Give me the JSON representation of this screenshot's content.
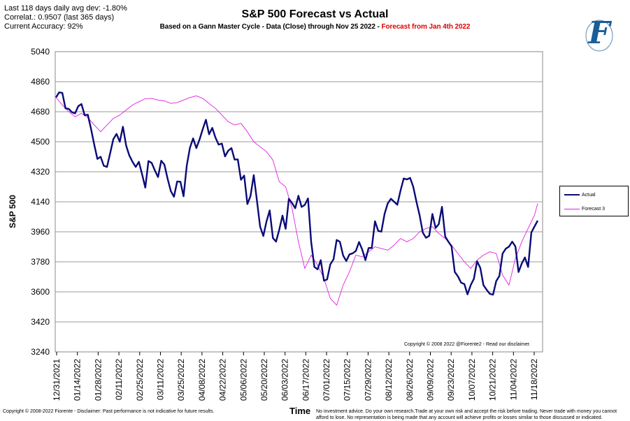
{
  "stats": {
    "line1": "Last 118 days daily avg dev: -1.80%",
    "line2": "Correlat.: 0.9507 (last 365 days)",
    "line3": "Current Accuracy: 92%"
  },
  "header": {
    "title": "S&P 500 Forecast vs Actual",
    "subtitle_main": "Based on a Gann Master Cycle - Data (Close) through Nov 25 2022 - ",
    "subtitle_forecast": "Forecast from Jan 4th 2022"
  },
  "logo": {
    "letter": "F"
  },
  "footer": {
    "left": "Copyright © 2008-2022 Fiorente - Disclaimer: Past performance is not indicative for future results.",
    "time_label": "Time",
    "right": "No investment advice. Do your own research.Trade at your own risk and accept the risk before trading. Never trade with money you cannot afford to lose. No representation is being made that any account will achieve profits or losses similar to those discussed or indicated."
  },
  "chart_copyright": "Copyright © 2008 2022 @Fiorente2 - Read our disclaimer.",
  "colors": {
    "actual": "#0a0a78",
    "forecast": "#e020e0",
    "grid": "#9a9a9a"
  },
  "chart_data": {
    "type": "line",
    "title": "S&P 500 Forecast vs Actual",
    "xlabel": "Time",
    "ylabel": "S&P 500",
    "ylim": [
      3240,
      5040
    ],
    "yticks": [
      3240,
      3420,
      3600,
      3780,
      3960,
      4140,
      4320,
      4500,
      4680,
      4860,
      5040
    ],
    "xticks": [
      "12/31/2021",
      "01/14/2022",
      "01/28/2022",
      "02/11/2022",
      "02/25/2022",
      "03/11/2022",
      "03/25/2022",
      "04/08/2022",
      "04/22/2022",
      "05/06/2022",
      "05/20/2022",
      "06/03/2022",
      "06/17/2022",
      "07/01/2022",
      "07/15/2022",
      "07/29/2022",
      "08/12/2022",
      "08/26/2022",
      "09/09/2022",
      "09/23/2022",
      "10/07/2022",
      "10/21/2022",
      "11/04/2022",
      "11/18/2022"
    ],
    "xrange_days": [
      0,
      151
    ],
    "grid": true,
    "legend": "right",
    "series": [
      {
        "name": "Actual",
        "points": [
          [
            0,
            4766
          ],
          [
            1,
            4796
          ],
          [
            2,
            4793
          ],
          [
            3,
            4700
          ],
          [
            4,
            4697
          ],
          [
            5,
            4677
          ],
          [
            6,
            4670
          ],
          [
            7,
            4713
          ],
          [
            8,
            4726
          ],
          [
            9,
            4659
          ],
          [
            10,
            4662
          ],
          [
            11,
            4577
          ],
          [
            12,
            4482
          ],
          [
            13,
            4397
          ],
          [
            14,
            4410
          ],
          [
            15,
            4356
          ],
          [
            16,
            4349
          ],
          [
            17,
            4432
          ],
          [
            18,
            4516
          ],
          [
            19,
            4547
          ],
          [
            20,
            4500
          ],
          [
            21,
            4590
          ],
          [
            22,
            4477
          ],
          [
            23,
            4418
          ],
          [
            24,
            4380
          ],
          [
            25,
            4349
          ],
          [
            26,
            4380
          ],
          [
            27,
            4305
          ],
          [
            28,
            4225
          ],
          [
            29,
            4384
          ],
          [
            30,
            4373
          ],
          [
            31,
            4328
          ],
          [
            32,
            4288
          ],
          [
            33,
            4386
          ],
          [
            34,
            4363
          ],
          [
            35,
            4278
          ],
          [
            36,
            4204
          ],
          [
            37,
            4170
          ],
          [
            38,
            4262
          ],
          [
            39,
            4260
          ],
          [
            40,
            4173
          ],
          [
            41,
            4357
          ],
          [
            42,
            4463
          ],
          [
            43,
            4520
          ],
          [
            44,
            4462
          ],
          [
            45,
            4512
          ],
          [
            46,
            4575
          ],
          [
            47,
            4632
          ],
          [
            48,
            4545
          ],
          [
            49,
            4583
          ],
          [
            50,
            4525
          ],
          [
            51,
            4483
          ],
          [
            52,
            4489
          ],
          [
            53,
            4412
          ],
          [
            54,
            4446
          ],
          [
            55,
            4462
          ],
          [
            56,
            4393
          ],
          [
            57,
            4394
          ],
          [
            58,
            4272
          ],
          [
            59,
            4297
          ],
          [
            60,
            4126
          ],
          [
            61,
            4175
          ],
          [
            62,
            4300
          ],
          [
            63,
            4146
          ],
          [
            64,
            3991
          ],
          [
            65,
            3935
          ],
          [
            66,
            4023
          ],
          [
            67,
            4088
          ],
          [
            68,
            3923
          ],
          [
            69,
            3901
          ],
          [
            70,
            3973
          ],
          [
            71,
            4057
          ],
          [
            72,
            3978
          ],
          [
            73,
            4158
          ],
          [
            74,
            4132
          ],
          [
            75,
            4101
          ],
          [
            76,
            4176
          ],
          [
            77,
            4109
          ],
          [
            78,
            4121
          ],
          [
            79,
            4160
          ],
          [
            80,
            3900
          ],
          [
            81,
            3750
          ],
          [
            82,
            3735
          ],
          [
            83,
            3790
          ],
          [
            84,
            3667
          ],
          [
            85,
            3674
          ],
          [
            86,
            3765
          ],
          [
            87,
            3795
          ],
          [
            88,
            3911
          ],
          [
            89,
            3900
          ],
          [
            90,
            3818
          ],
          [
            91,
            3785
          ],
          [
            92,
            3825
          ],
          [
            93,
            3831
          ],
          [
            94,
            3845
          ],
          [
            95,
            3899
          ],
          [
            96,
            3854
          ],
          [
            97,
            3790
          ],
          [
            98,
            3863
          ],
          [
            99,
            3863
          ],
          [
            100,
            4023
          ],
          [
            101,
            3966
          ],
          [
            102,
            3961
          ],
          [
            103,
            4067
          ],
          [
            104,
            4130
          ],
          [
            105,
            4158
          ],
          [
            106,
            4140
          ],
          [
            107,
            4122
          ],
          [
            108,
            4207
          ],
          [
            109,
            4280
          ],
          [
            110,
            4274
          ],
          [
            111,
            4283
          ],
          [
            112,
            4230
          ],
          [
            113,
            4140
          ],
          [
            114,
            4057
          ],
          [
            115,
            3955
          ],
          [
            116,
            3924
          ],
          [
            117,
            3936
          ],
          [
            118,
            4067
          ],
          [
            119,
            3983
          ],
          [
            120,
            4006
          ],
          [
            121,
            4110
          ],
          [
            122,
            3932
          ],
          [
            123,
            3901
          ],
          [
            124,
            3873
          ],
          [
            125,
            3719
          ],
          [
            126,
            3693
          ],
          [
            127,
            3655
          ],
          [
            128,
            3647
          ],
          [
            129,
            3585
          ],
          [
            130,
            3640
          ],
          [
            131,
            3678
          ],
          [
            132,
            3783
          ],
          [
            133,
            3744
          ],
          [
            134,
            3640
          ],
          [
            135,
            3612
          ],
          [
            136,
            3588
          ],
          [
            137,
            3583
          ],
          [
            138,
            3665
          ],
          [
            139,
            3695
          ],
          [
            140,
            3830
          ],
          [
            141,
            3859
          ],
          [
            142,
            3871
          ],
          [
            143,
            3901
          ],
          [
            144,
            3872
          ],
          [
            145,
            3719
          ],
          [
            146,
            3770
          ],
          [
            147,
            3806
          ],
          [
            148,
            3749
          ],
          [
            149,
            3956
          ],
          [
            150,
            3992
          ],
          [
            151,
            4027
          ]
        ]
      },
      {
        "name": "Forecast 3",
        "points": [
          [
            0,
            4766
          ],
          [
            2,
            4720
          ],
          [
            4,
            4680
          ],
          [
            6,
            4650
          ],
          [
            8,
            4670
          ],
          [
            10,
            4645
          ],
          [
            12,
            4600
          ],
          [
            14,
            4560
          ],
          [
            16,
            4600
          ],
          [
            18,
            4640
          ],
          [
            20,
            4660
          ],
          [
            22,
            4690
          ],
          [
            24,
            4720
          ],
          [
            26,
            4740
          ],
          [
            28,
            4758
          ],
          [
            30,
            4760
          ],
          [
            32,
            4750
          ],
          [
            34,
            4745
          ],
          [
            36,
            4730
          ],
          [
            38,
            4735
          ],
          [
            40,
            4750
          ],
          [
            42,
            4765
          ],
          [
            44,
            4775
          ],
          [
            46,
            4760
          ],
          [
            48,
            4730
          ],
          [
            50,
            4700
          ],
          [
            52,
            4660
          ],
          [
            54,
            4620
          ],
          [
            56,
            4600
          ],
          [
            58,
            4610
          ],
          [
            60,
            4560
          ],
          [
            62,
            4500
          ],
          [
            64,
            4470
          ],
          [
            66,
            4440
          ],
          [
            68,
            4390
          ],
          [
            70,
            4260
          ],
          [
            72,
            4230
          ],
          [
            74,
            4100
          ],
          [
            76,
            3900
          ],
          [
            78,
            3740
          ],
          [
            80,
            3820
          ],
          [
            82,
            3760
          ],
          [
            84,
            3680
          ],
          [
            86,
            3560
          ],
          [
            88,
            3520
          ],
          [
            90,
            3640
          ],
          [
            92,
            3720
          ],
          [
            94,
            3820
          ],
          [
            96,
            3810
          ],
          [
            98,
            3840
          ],
          [
            100,
            3870
          ],
          [
            102,
            3860
          ],
          [
            104,
            3850
          ],
          [
            106,
            3880
          ],
          [
            108,
            3920
          ],
          [
            110,
            3900
          ],
          [
            112,
            3920
          ],
          [
            114,
            3960
          ],
          [
            116,
            3980
          ],
          [
            118,
            3990
          ],
          [
            120,
            3950
          ],
          [
            122,
            3920
          ],
          [
            124,
            3880
          ],
          [
            126,
            3830
          ],
          [
            128,
            3780
          ],
          [
            130,
            3740
          ],
          [
            132,
            3790
          ],
          [
            134,
            3820
          ],
          [
            136,
            3840
          ],
          [
            138,
            3830
          ],
          [
            140,
            3700
          ],
          [
            142,
            3640
          ],
          [
            144,
            3800
          ],
          [
            146,
            3900
          ],
          [
            148,
            3980
          ],
          [
            150,
            4060
          ],
          [
            151,
            4130
          ]
        ]
      }
    ]
  }
}
